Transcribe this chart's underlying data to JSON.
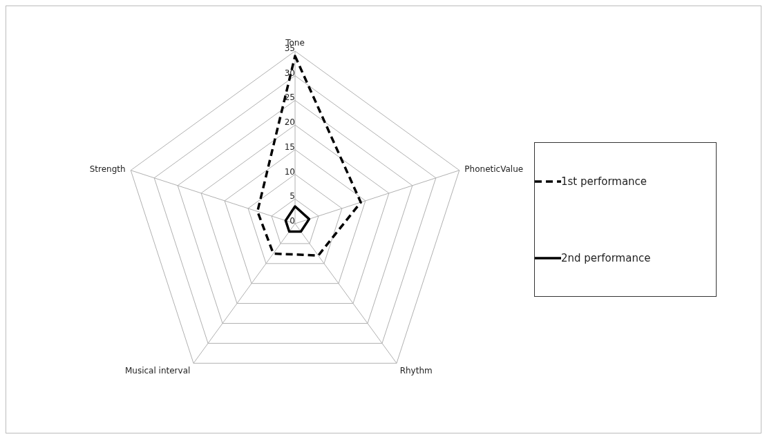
{
  "chart_data": {
    "type": "radar",
    "categories": [
      "Tone",
      "PhoneticValue",
      "Rhythm",
      "Musical interval",
      "Strength"
    ],
    "series": [
      {
        "name": "1st performance",
        "color": "#000000",
        "line_style": "dashed",
        "values": [
          34,
          14,
          8,
          7.5,
          8
        ]
      },
      {
        "name": "2nd performance",
        "color": "#000000",
        "line_style": "solid",
        "values": [
          3.5,
          3,
          2,
          2,
          2
        ]
      }
    ],
    "ylim": [
      0,
      35
    ],
    "yticks": [
      0,
      5,
      10,
      15,
      20,
      25,
      30,
      35
    ],
    "grid": true,
    "legend": "right",
    "marker": "none"
  }
}
